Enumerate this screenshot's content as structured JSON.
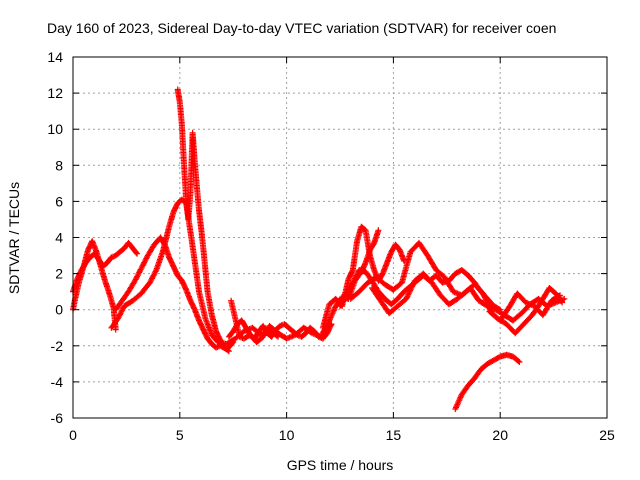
{
  "chart_data": {
    "type": "scatter",
    "title": "Day 160 of 2023, Sidereal Day-to-day VTEC variation (SDTVAR) for receiver coen",
    "xlabel": "GPS time / hours",
    "ylabel": "SDTVAR / TECUs",
    "xlim": [
      0,
      25
    ],
    "ylim": [
      -6,
      14
    ],
    "xticks": [
      0,
      5,
      10,
      15,
      20,
      25
    ],
    "yticks": [
      -6,
      -4,
      -2,
      0,
      2,
      4,
      6,
      8,
      10,
      12,
      14
    ],
    "grid": true,
    "marker": "+",
    "color": "#ff0000",
    "series": [
      {
        "name": "arc-1",
        "x": [
          0.0,
          0.2,
          0.4,
          0.6,
          0.8,
          1.0,
          1.2,
          1.4,
          1.6,
          1.8,
          2.0,
          2.2,
          2.4,
          2.6,
          2.8,
          3.0
        ],
        "y": [
          1.0,
          1.7,
          2.2,
          2.6,
          2.9,
          3.1,
          2.8,
          2.4,
          2.6,
          2.9,
          3.0,
          3.2,
          3.4,
          3.7,
          3.4,
          3.1
        ]
      },
      {
        "name": "arc-2",
        "x": [
          0.0,
          0.1,
          0.3,
          0.5,
          0.7,
          0.9,
          1.1,
          1.3,
          1.5,
          1.7,
          1.9,
          2.0
        ],
        "y": [
          0.0,
          0.6,
          1.6,
          2.4,
          3.3,
          3.8,
          3.2,
          2.4,
          1.6,
          0.9,
          0.1,
          -1.1
        ]
      },
      {
        "name": "arc-3",
        "x": [
          2.0,
          2.3,
          2.6,
          2.9,
          3.2,
          3.5,
          3.8,
          4.1,
          4.3,
          4.5,
          4.7,
          4.9,
          5.1,
          5.3,
          5.5,
          5.7,
          5.9,
          6.1,
          6.3,
          6.5,
          6.7,
          6.9,
          7.2,
          7.5
        ],
        "y": [
          0.0,
          0.5,
          1.0,
          1.6,
          2.3,
          3.0,
          3.6,
          4.0,
          3.6,
          2.9,
          2.4,
          1.9,
          1.6,
          1.1,
          0.5,
          0.0,
          -0.6,
          -1.1,
          -1.6,
          -1.9,
          -2.1,
          -2.0,
          -2.2,
          -1.8
        ]
      },
      {
        "name": "arc-4",
        "x": [
          1.8,
          2.1,
          2.4,
          2.8,
          3.2,
          3.6,
          3.9,
          4.2,
          4.5,
          4.7,
          4.9,
          5.1,
          5.3,
          5.6,
          5.9,
          6.2,
          6.5,
          6.8,
          7.2,
          7.6,
          8.0,
          8.4,
          8.8,
          9.2,
          9.6
        ],
        "y": [
          -1.0,
          -0.5,
          0.2,
          0.5,
          0.9,
          1.5,
          2.2,
          3.2,
          4.6,
          5.4,
          5.9,
          6.1,
          5.9,
          3.5,
          1.0,
          -0.5,
          -1.4,
          -1.8,
          -1.9,
          -1.6,
          -1.2,
          -1.0,
          -1.4,
          -1.1,
          -1.5
        ]
      },
      {
        "name": "arc-5",
        "x": [
          4.9,
          5.0,
          5.1,
          5.2,
          5.3,
          5.4,
          5.5,
          5.6,
          5.7,
          5.8,
          5.9,
          6.0,
          6.1,
          6.2,
          6.3,
          6.5,
          6.7,
          6.9,
          7.1,
          7.3
        ],
        "y": [
          12.2,
          11.5,
          10.2,
          8.0,
          6.0,
          5.0,
          6.5,
          9.8,
          8.2,
          6.8,
          5.5,
          4.5,
          3.4,
          2.2,
          1.0,
          -0.3,
          -1.2,
          -1.7,
          -2.1,
          -2.3
        ]
      },
      {
        "name": "arc-6",
        "x": [
          7.3,
          7.5,
          7.7,
          7.9,
          8.1,
          8.3,
          8.5,
          8.7,
          8.9,
          9.1,
          9.3,
          9.5,
          9.7,
          9.9,
          10.1,
          10.3,
          10.5,
          10.7,
          10.9,
          11.1,
          11.3,
          11.5,
          11.7,
          11.9,
          12.1
        ],
        "y": [
          -1.5,
          -1.2,
          -0.8,
          -0.6,
          -1.0,
          -1.4,
          -1.6,
          -1.2,
          -0.9,
          -1.3,
          -1.5,
          -1.1,
          -0.9,
          -0.8,
          -1.0,
          -1.2,
          -1.4,
          -1.5,
          -1.3,
          -1.0,
          -1.2,
          -1.5,
          -1.6,
          -1.3,
          -0.8
        ]
      },
      {
        "name": "arc-7",
        "x": [
          7.4,
          7.6,
          7.8,
          8.0,
          8.3,
          8.6,
          8.9,
          9.2,
          9.6,
          10.0,
          10.4,
          10.8,
          11.2,
          11.6,
          12.0,
          12.3,
          12.6,
          12.9,
          13.2,
          13.5,
          13.7,
          13.9,
          14.1,
          14.3
        ],
        "y": [
          0.5,
          -0.5,
          -1.5,
          -1.6,
          -1.4,
          -1.8,
          -1.5,
          -0.9,
          -1.3,
          -1.6,
          -1.4,
          -1.0,
          -1.3,
          -1.5,
          -0.6,
          0.2,
          0.7,
          0.6,
          1.6,
          2.1,
          2.6,
          3.3,
          3.7,
          4.4
        ]
      },
      {
        "name": "arc-8",
        "x": [
          11.7,
          12.0,
          12.3,
          12.6,
          12.9,
          13.1,
          13.3,
          13.5,
          13.7,
          13.9,
          14.1,
          14.3,
          14.5,
          14.7,
          14.9,
          15.1,
          15.3,
          15.5
        ],
        "y": [
          -1.0,
          0.3,
          0.6,
          0.2,
          1.7,
          2.2,
          3.8,
          4.6,
          4.4,
          3.0,
          2.2,
          1.6,
          2.0,
          2.6,
          3.2,
          3.6,
          3.3,
          2.7
        ]
      },
      {
        "name": "arc-9",
        "x": [
          12.5,
          12.8,
          13.1,
          13.4,
          13.7,
          14.0,
          14.3,
          14.6,
          14.9,
          15.2,
          15.5,
          15.8,
          16.1,
          16.4,
          16.7,
          17.0,
          17.3,
          17.6,
          17.9,
          18.2,
          18.5,
          18.8,
          19.1,
          19.4,
          19.7,
          20.0
        ],
        "y": [
          0.2,
          0.9,
          1.5,
          2.2,
          2.1,
          1.6,
          1.0,
          0.6,
          0.3,
          0.6,
          1.0,
          1.3,
          1.6,
          1.9,
          1.6,
          1.9,
          1.5,
          1.6,
          2.0,
          2.2,
          1.9,
          1.5,
          1.0,
          0.6,
          0.2,
          0.0
        ]
      },
      {
        "name": "arc-10",
        "x": [
          13.0,
          13.4,
          13.8,
          14.2,
          14.6,
          15.0,
          15.4,
          15.8,
          16.2,
          16.6,
          17.0,
          17.4,
          17.8,
          18.2,
          18.6,
          19.0,
          19.4,
          19.8,
          20.2,
          20.6,
          21.0,
          21.4,
          21.8,
          22.2,
          22.6,
          23.0
        ],
        "y": [
          0.6,
          1.0,
          1.5,
          1.8,
          1.4,
          1.1,
          1.5,
          3.2,
          3.7,
          3.0,
          2.2,
          1.8,
          1.0,
          0.8,
          1.2,
          0.5,
          0.2,
          0.0,
          -0.3,
          -0.6,
          -0.2,
          0.3,
          0.6,
          0.2,
          0.4,
          0.6
        ]
      },
      {
        "name": "arc-11",
        "x": [
          14.0,
          14.4,
          14.8,
          15.2,
          15.6,
          16.0,
          16.4,
          16.8,
          17.2,
          17.6,
          18.0,
          18.4,
          18.8,
          19.2,
          19.6,
          20.0,
          20.4,
          20.8,
          21.2,
          21.6,
          22.0,
          22.4,
          22.8
        ],
        "y": [
          1.2,
          0.5,
          -0.2,
          0.2,
          0.6,
          1.6,
          2.0,
          1.5,
          0.8,
          0.3,
          0.6,
          1.0,
          1.4,
          0.9,
          -0.2,
          -0.6,
          0.1,
          0.9,
          0.4,
          0.2,
          -0.3,
          0.5,
          0.8
        ]
      },
      {
        "name": "arc-12",
        "x": [
          19.5,
          19.9,
          20.3,
          20.7,
          21.1,
          21.5,
          21.9,
          22.3,
          22.6,
          22.9
        ],
        "y": [
          -0.1,
          -0.5,
          -0.8,
          -1.3,
          -0.8,
          -0.3,
          0.4,
          1.2,
          0.9,
          0.4
        ]
      },
      {
        "name": "arc-13",
        "x": [
          17.9,
          18.2,
          18.5,
          18.8,
          19.1,
          19.4,
          19.7,
          20.0,
          20.3,
          20.6,
          20.9
        ],
        "y": [
          -5.5,
          -4.7,
          -4.2,
          -3.8,
          -3.3,
          -3.0,
          -2.8,
          -2.6,
          -2.5,
          -2.6,
          -2.9
        ]
      }
    ]
  }
}
